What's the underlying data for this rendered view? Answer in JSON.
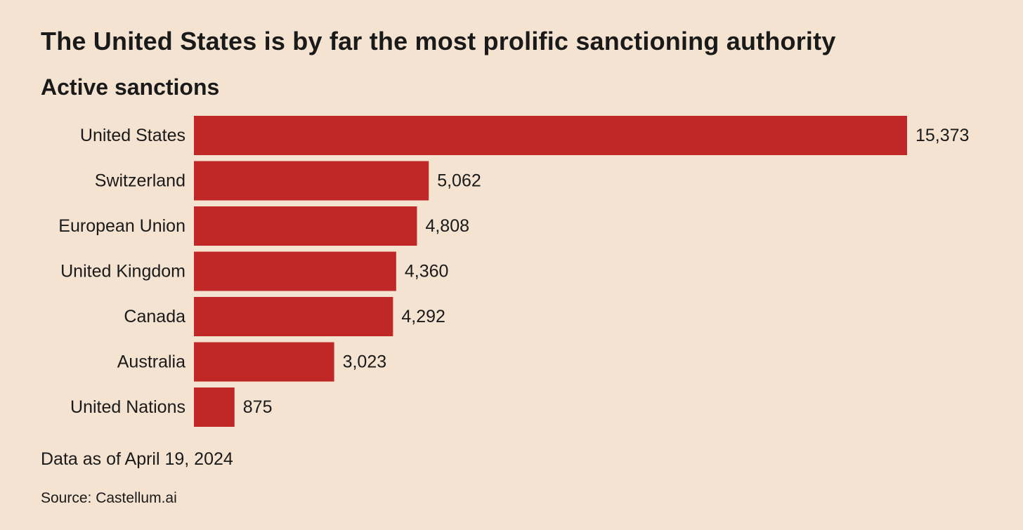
{
  "title": "The United States is by far the most prolific sanctioning authority",
  "subtitle": "Active sanctions",
  "note": "Data as of April 19, 2024",
  "source": "Source: Castellum.ai",
  "colors": {
    "background": "#f4e3d0",
    "bar": "#bf2826",
    "text": "#1a1a1a"
  },
  "chart_data": {
    "type": "bar",
    "orientation": "horizontal",
    "categories": [
      "United States",
      "Switzerland",
      "European Union",
      "United Kingdom",
      "Canada",
      "Australia",
      "United Nations"
    ],
    "values": [
      15373,
      5062,
      4808,
      4360,
      4292,
      3023,
      875
    ],
    "value_labels": [
      "15,373",
      "5,062",
      "4,808",
      "4,360",
      "4,292",
      "3,023",
      "875"
    ],
    "title": "The United States is by far the most prolific sanctioning authority",
    "subtitle": "Active sanctions",
    "xlabel": "",
    "ylabel": "",
    "xlim": [
      0,
      15373
    ],
    "grid": false,
    "legend": "none"
  }
}
